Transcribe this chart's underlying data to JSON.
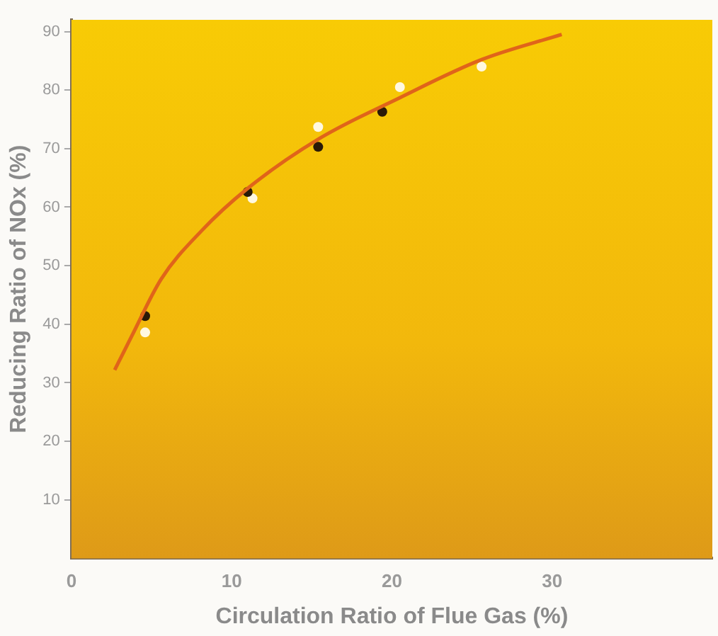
{
  "chart_data": {
    "type": "scatter",
    "xlabel": "Circulation Ratio of Flue Gas (%)",
    "ylabel": "Reducing Ratio of NOx (%)",
    "xlim": [
      0,
      40
    ],
    "ylim": [
      0,
      92
    ],
    "xticks": [
      0,
      10,
      20,
      30
    ],
    "yticks": [
      10,
      20,
      30,
      40,
      50,
      60,
      70,
      80,
      90
    ],
    "grid": false,
    "legend": false,
    "marker": "circle",
    "series": [
      {
        "type": "line",
        "color": "#e0641a",
        "marker": "none",
        "line_style": "solid",
        "x": [
          2.7,
          3.75,
          5.6,
          8.1,
          11,
          15.4,
          20.5,
          25.6,
          30.6
        ],
        "values": [
          32.2,
          37.9,
          47.7,
          55.9,
          63.2,
          71.6,
          78.7,
          85.2,
          89.5
        ]
      },
      {
        "color": "#2a1a08",
        "x": [
          4.6,
          11.0,
          15.4,
          19.4
        ],
        "values": [
          41.4,
          62.6,
          70.3,
          76.3
        ]
      },
      {
        "color": "#fff8e0",
        "x": [
          4.6,
          11.3,
          15.4,
          20.5,
          25.6
        ],
        "values": [
          38.6,
          61.5,
          73.7,
          80.5,
          84.0
        ]
      }
    ]
  }
}
